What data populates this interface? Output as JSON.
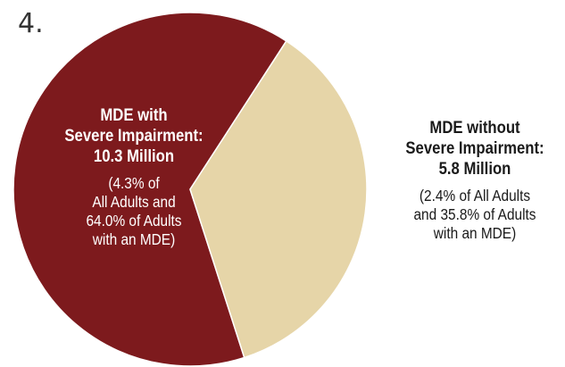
{
  "figure_number": "4.",
  "colors": {
    "severe": "#7d1a1d",
    "not_severe": "#e6d5a8",
    "stroke": "#ffffff"
  },
  "chart_data": {
    "type": "pie",
    "slices": [
      {
        "key": "severe",
        "value": 64.0,
        "color": "#7d1a1d",
        "label": {
          "head": [
            "MDE with",
            "Severe Impairment:",
            "10.3 Million"
          ],
          "sub": [
            "(4.3% of",
            "All Adults and",
            "64.0% of Adults",
            "with an MDE)"
          ]
        }
      },
      {
        "key": "not_severe",
        "value": 35.8,
        "color": "#e6d5a8",
        "label": {
          "head": [
            "MDE without",
            "Severe Impairment:",
            "5.8 Million"
          ],
          "sub": [
            "(2.4% of All Adults",
            "and 35.8% of Adults",
            "with an MDE)"
          ]
        }
      }
    ]
  }
}
